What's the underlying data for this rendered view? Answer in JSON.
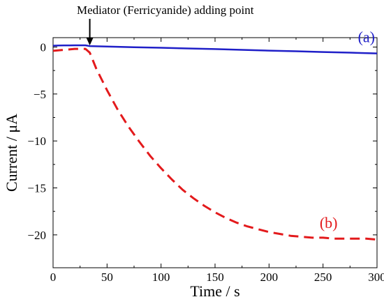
{
  "chart_data": {
    "type": "line",
    "xlabel": "Time / s",
    "ylabel": "Current / μA",
    "xlim": [
      0,
      300
    ],
    "ylim": [
      -23.5,
      1
    ],
    "xticks": [
      0,
      50,
      100,
      150,
      200,
      250,
      300
    ],
    "yticks": [
      0,
      -5,
      -10,
      -15,
      -20
    ],
    "grid": false,
    "annotation": {
      "text": "Mediator (Ferricyanide) adding point",
      "x": 34,
      "y": 0.1
    },
    "series": [
      {
        "name": "(a)",
        "color": "#1f1fc8",
        "dash": "solid",
        "x": [
          0,
          5,
          10,
          15,
          20,
          25,
          30,
          34,
          50,
          75,
          100,
          125,
          150,
          175,
          200,
          225,
          250,
          275,
          300
        ],
        "y": [
          0.15,
          0.16,
          0.17,
          0.17,
          0.18,
          0.18,
          0.18,
          0.1,
          0.05,
          -0.02,
          -0.08,
          -0.15,
          -0.22,
          -0.3,
          -0.38,
          -0.45,
          -0.53,
          -0.6,
          -0.68
        ]
      },
      {
        "name": "(b)",
        "color": "#e31a1c",
        "dash": "dashed",
        "x": [
          0,
          10,
          20,
          30,
          34,
          40,
          50,
          60,
          70,
          80,
          90,
          100,
          110,
          120,
          130,
          140,
          150,
          160,
          170,
          180,
          190,
          200,
          210,
          220,
          230,
          240,
          250,
          260,
          270,
          280,
          290,
          300
        ],
        "y": [
          -0.4,
          -0.3,
          -0.2,
          -0.2,
          -0.6,
          -2.3,
          -4.6,
          -6.7,
          -8.5,
          -10.1,
          -11.6,
          -12.9,
          -14.1,
          -15.2,
          -16.1,
          -16.9,
          -17.6,
          -18.2,
          -18.7,
          -19.1,
          -19.4,
          -19.7,
          -19.9,
          -20.1,
          -20.2,
          -20.3,
          -20.3,
          -20.4,
          -20.4,
          -20.4,
          -20.4,
          -20.5
        ]
      }
    ]
  }
}
